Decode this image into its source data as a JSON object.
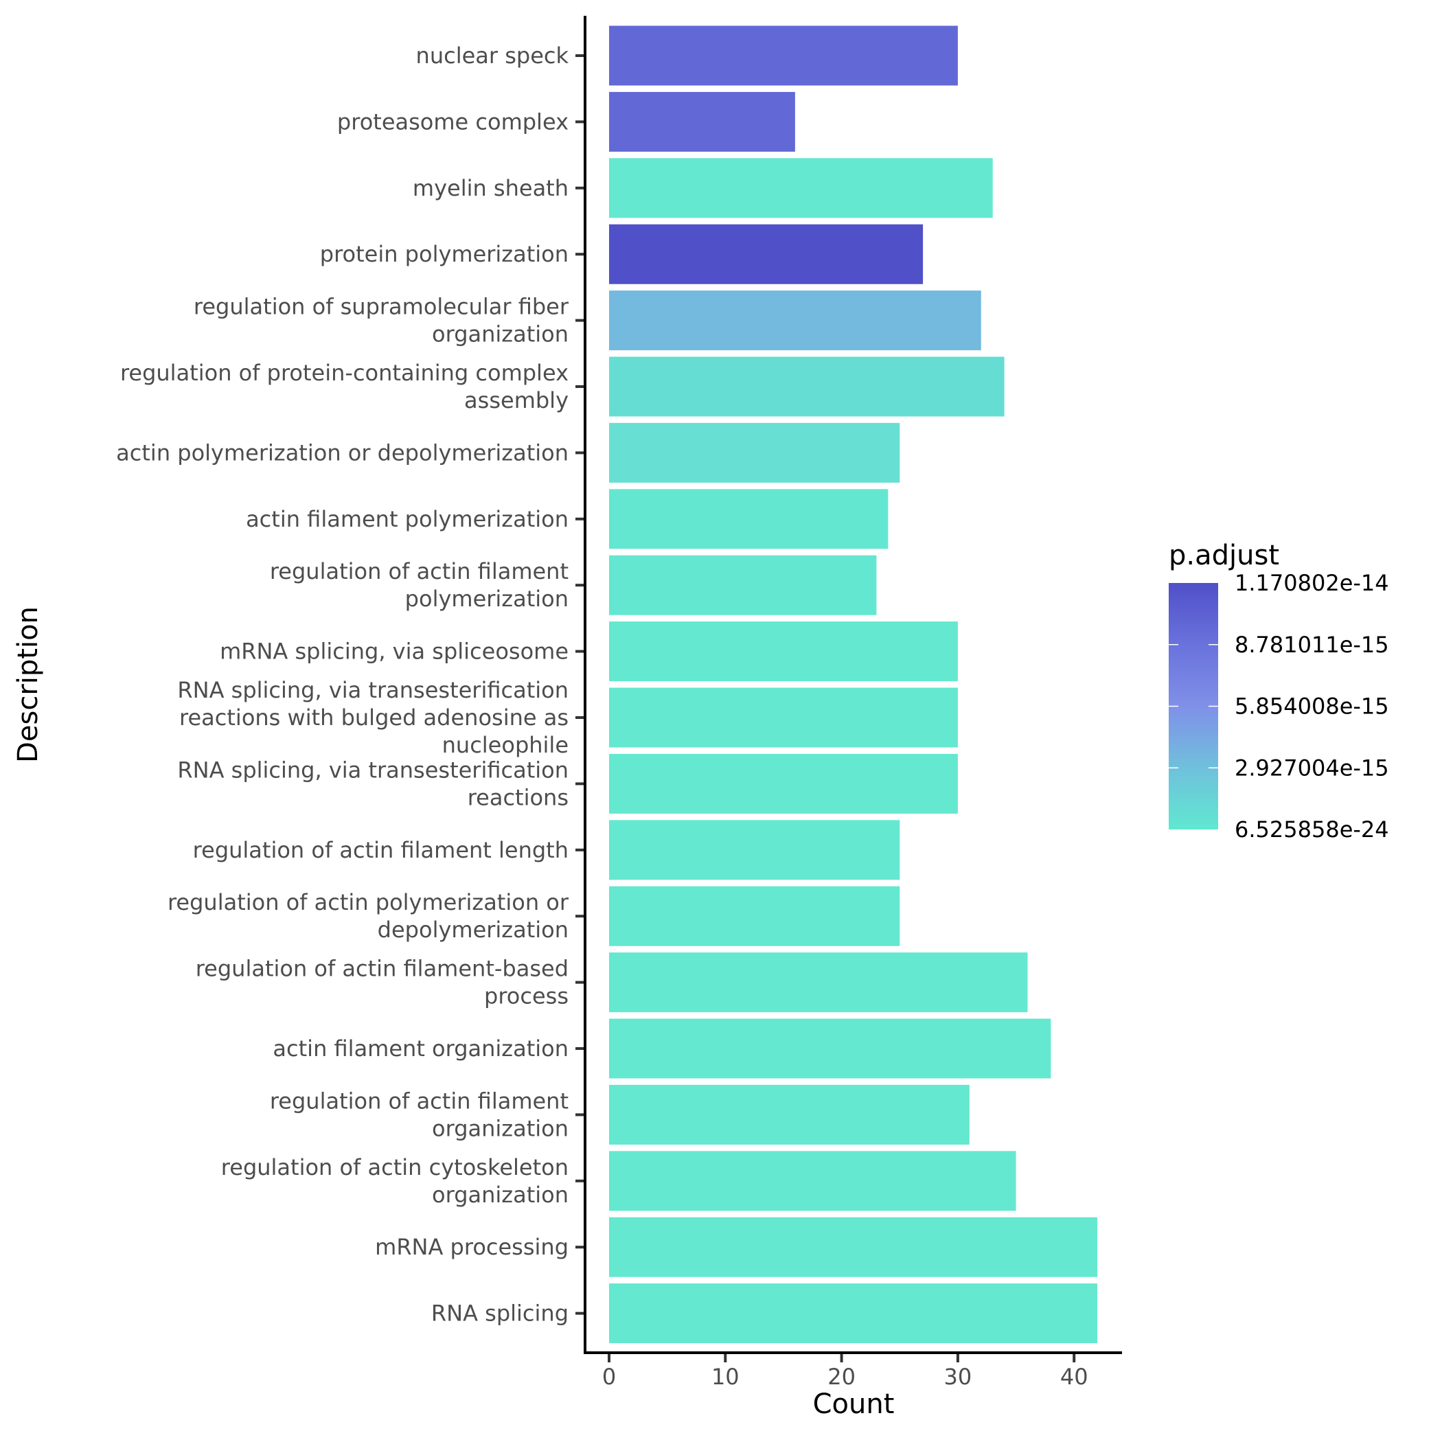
{
  "chart_data": {
    "type": "bar",
    "orientation": "horizontal",
    "xlabel": "Count",
    "ylabel": "Description",
    "xlim": [
      0,
      44
    ],
    "xticks": [
      0,
      10,
      20,
      30,
      40
    ],
    "grid": false,
    "categories": [
      "nuclear speck",
      "proteasome complex",
      "myelin sheath",
      "protein polymerization",
      "regulation of supramolecular fiber organization",
      "regulation of protein-containing complex assembly",
      "actin polymerization or depolymerization",
      "actin filament polymerization",
      "regulation of actin filament polymerization",
      "mRNA splicing, via spliceosome",
      "RNA splicing, via transesterification reactions with bulged adenosine as nucleophile",
      "RNA splicing, via transesterification reactions",
      "regulation of actin filament length",
      "regulation of actin polymerization or depolymerization",
      "regulation of actin filament-based process",
      "actin filament organization",
      "regulation of actin filament organization",
      "regulation of actin cytoskeleton organization",
      "mRNA processing",
      "RNA splicing"
    ],
    "category_lines": [
      [
        "nuclear speck"
      ],
      [
        "proteasome complex"
      ],
      [
        "myelin sheath"
      ],
      [
        "protein polymerization"
      ],
      [
        "regulation of supramolecular fiber",
        "organization"
      ],
      [
        "regulation of protein-containing complex",
        "assembly"
      ],
      [
        "actin polymerization or depolymerization"
      ],
      [
        "actin filament polymerization"
      ],
      [
        "regulation of actin filament",
        "polymerization"
      ],
      [
        "mRNA splicing, via spliceosome"
      ],
      [
        "RNA splicing, via transesterification",
        "reactions with bulged adenosine as",
        "nucleophile"
      ],
      [
        "RNA splicing, via transesterification",
        "reactions"
      ],
      [
        "regulation of actin filament length"
      ],
      [
        "regulation of actin polymerization or",
        "depolymerization"
      ],
      [
        "regulation of actin filament-based",
        "process"
      ],
      [
        "actin filament organization"
      ],
      [
        "regulation of actin filament",
        "organization"
      ],
      [
        "regulation of actin cytoskeleton",
        "organization"
      ],
      [
        "mRNA processing"
      ],
      [
        "RNA splicing"
      ]
    ],
    "values": [
      30,
      16,
      33,
      27,
      32,
      34,
      25,
      24,
      23,
      30,
      30,
      30,
      25,
      25,
      36,
      38,
      31,
      35,
      42,
      42
    ],
    "bar_colors": [
      "#6269d6",
      "#6269d6",
      "#64e8d0",
      "#5050c8",
      "#74b9de",
      "#66ddd2",
      "#67dfd3",
      "#64e7d0",
      "#64e7d0",
      "#64e8d0",
      "#64e8d0",
      "#64e8d0",
      "#64e8d0",
      "#64e8d0",
      "#64e8d0",
      "#64e8d0",
      "#64e8d0",
      "#64e8d0",
      "#64e8d0",
      "#64e8d0"
    ],
    "legend": {
      "title": "p.adjust",
      "placement": "right",
      "type": "colorbar",
      "labels": [
        "1.170802e-14",
        "8.781011e-15",
        "5.854008e-15",
        "2.927004e-15",
        "6.525858e-24"
      ],
      "colors_top_to_bottom": [
        "#5050c8",
        "#6a72dc",
        "#8090e8",
        "#70c0dc",
        "#60e8d0"
      ]
    }
  }
}
